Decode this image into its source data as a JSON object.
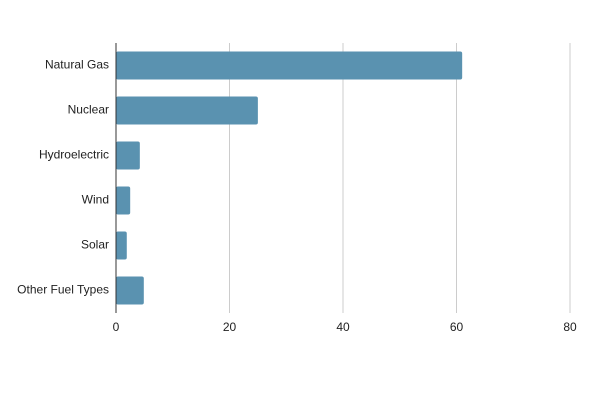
{
  "chart_data": {
    "type": "bar",
    "orientation": "horizontal",
    "categories": [
      "Natural Gas",
      "Nuclear",
      "Hydroelectric",
      "Wind",
      "Solar",
      "Other Fuel Types"
    ],
    "values": [
      61,
      25,
      4.2,
      2.5,
      1.9,
      4.9
    ],
    "color": "#5a92b0",
    "xlim": [
      0,
      80
    ],
    "xticks": [
      0,
      20,
      40,
      60,
      80
    ],
    "grid": true
  }
}
